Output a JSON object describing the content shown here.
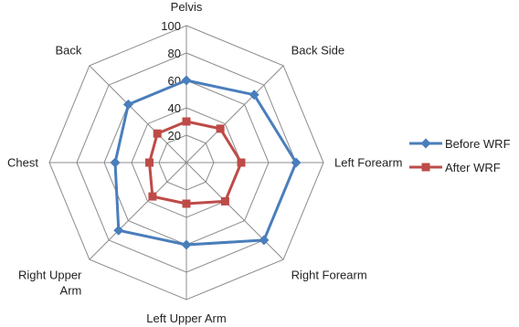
{
  "chart_data": {
    "type": "radar",
    "categories": [
      "Pelvis",
      "Back Side",
      "Left Forearm",
      "Right Forearm",
      "Left Upper Arm",
      "Right Upper Arm",
      "Chest",
      "Back"
    ],
    "category_lines": [
      [
        "Pelvis"
      ],
      [
        "Back Side"
      ],
      [
        "Left Forearm"
      ],
      [
        "Right Forearm"
      ],
      [
        "Left Upper Arm"
      ],
      [
        "Right Upper",
        "Arm"
      ],
      [
        "Chest"
      ],
      [
        "Back"
      ]
    ],
    "rlim": [
      0,
      100
    ],
    "ticks": [
      20,
      40,
      60,
      80,
      100
    ],
    "tick_labels": [
      "20",
      "40",
      "60",
      "80",
      "100"
    ],
    "grid": true,
    "legend_position": "right",
    "series": [
      {
        "name": "Before WRF",
        "color": "#4a7ebb",
        "marker": "diamond",
        "values": [
          60,
          70,
          80,
          80,
          60,
          70,
          52,
          60
        ]
      },
      {
        "name": "After WRF",
        "color": "#be4b48",
        "marker": "square",
        "values": [
          30,
          35,
          40,
          40,
          30,
          35,
          27,
          30
        ]
      }
    ]
  }
}
